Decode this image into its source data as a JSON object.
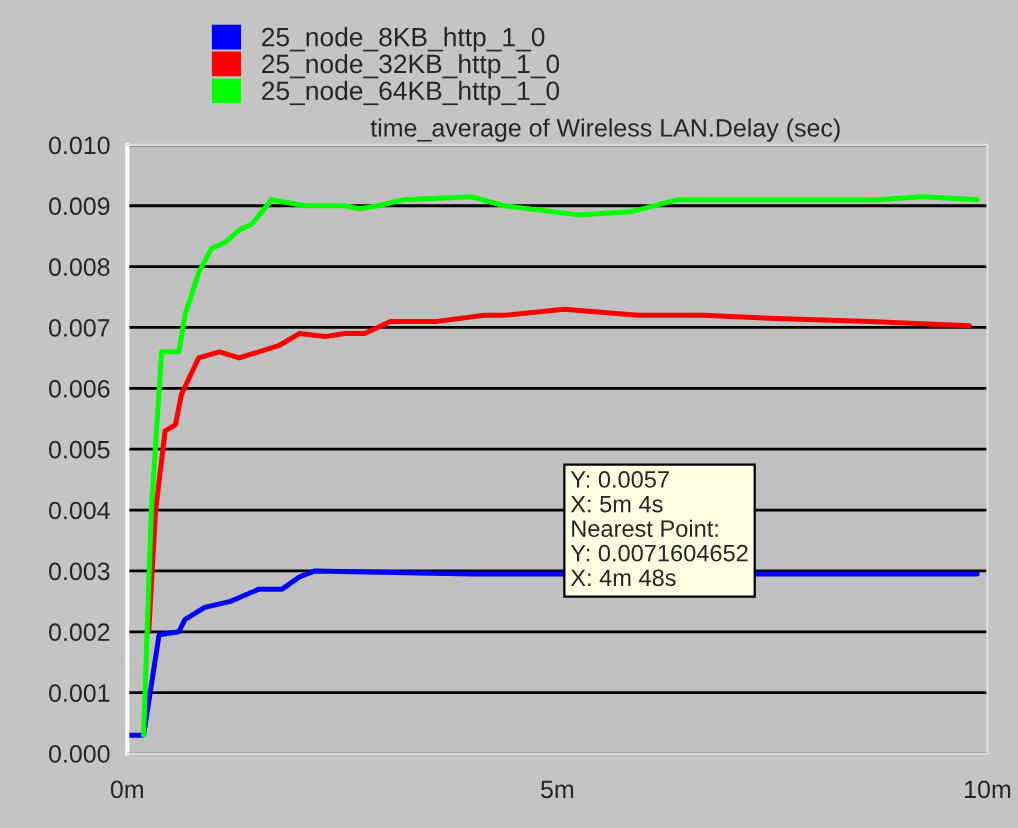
{
  "chart_data": {
    "type": "line",
    "title": "time_average of Wireless LAN.Delay (sec)",
    "xlim": [
      0,
      10
    ],
    "xticks": [
      {
        "value": 0,
        "label": "0m"
      },
      {
        "value": 5,
        "label": "5m"
      },
      {
        "value": 10,
        "label": "10m"
      }
    ],
    "ylim": [
      0,
      0.01
    ],
    "yticks": [
      {
        "value": 0,
        "label": "0.000"
      },
      {
        "value": 0.001,
        "label": "0.001"
      },
      {
        "value": 0.002,
        "label": "0.002"
      },
      {
        "value": 0.003,
        "label": "0.003"
      },
      {
        "value": 0.004,
        "label": "0.004"
      },
      {
        "value": 0.005,
        "label": "0.005"
      },
      {
        "value": 0.006,
        "label": "0.006"
      },
      {
        "value": 0.007,
        "label": "0.007"
      },
      {
        "value": 0.008,
        "label": "0.008"
      },
      {
        "value": 0.009,
        "label": "0.009"
      },
      {
        "value": 0.01,
        "label": "0.010"
      }
    ],
    "grid": "y",
    "legend": "top left",
    "marker": "none",
    "line_style": "solid",
    "annotations": [
      "Y: 0.0057\nX: 5m 4s\nNearest Point:\nY: 0.0071604652\nX: 4m 48s"
    ],
    "series": [
      {
        "name": "25_node_8KB_http_1_0",
        "color": "#0000ff",
        "x": [
          0,
          0.19,
          0.37,
          0.6,
          0.67,
          0.9,
          1.2,
          1.53,
          1.8,
          2.0,
          2.18,
          4.0,
          7.6,
          8.6,
          9.88
        ],
        "values": [
          0.0003,
          0.0003,
          0.00195,
          0.002,
          0.0022,
          0.0024,
          0.0025,
          0.0027,
          0.0027,
          0.0029,
          0.003,
          0.00295,
          0.00295,
          0.00295,
          0.00295
        ]
      },
      {
        "name": "25_node_32KB_http_1_0",
        "color": "#ff0000",
        "x": [
          0.25,
          0.33,
          0.44,
          0.56,
          0.63,
          0.83,
          1.07,
          1.3,
          1.53,
          1.76,
          2.0,
          2.3,
          2.53,
          2.76,
          3.06,
          3.6,
          4.15,
          4.38,
          5.08,
          5.94,
          6.7,
          7.47,
          8.63,
          9.79
        ],
        "values": [
          0.002,
          0.004,
          0.0053,
          0.0054,
          0.0059,
          0.0065,
          0.0066,
          0.0065,
          0.0066,
          0.0067,
          0.0069,
          0.00685,
          0.0069,
          0.0069,
          0.0071,
          0.0071,
          0.0072,
          0.0072,
          0.0073,
          0.0072,
          0.0072,
          0.00715,
          0.0071,
          0.00703
        ]
      },
      {
        "name": "25_node_64KB_http_1_0",
        "color": "#00ff00",
        "x": [
          0.19,
          0.28,
          0.4,
          0.6,
          0.67,
          0.83,
          0.98,
          1.14,
          1.3,
          1.45,
          1.68,
          2.07,
          2.53,
          2.7,
          2.92,
          3.22,
          4.0,
          4.38,
          5.24,
          5.85,
          6.4,
          7.47,
          8.72,
          9.26,
          9.88
        ],
        "values": [
          0.0003,
          0.004,
          0.0066,
          0.0066,
          0.0072,
          0.0079,
          0.0083,
          0.0084,
          0.0086,
          0.0087,
          0.0091,
          0.009,
          0.009,
          0.00895,
          0.009,
          0.0091,
          0.00915,
          0.009,
          0.00885,
          0.0089,
          0.0091,
          0.0091,
          0.0091,
          0.00915,
          0.0091
        ]
      }
    ]
  }
}
